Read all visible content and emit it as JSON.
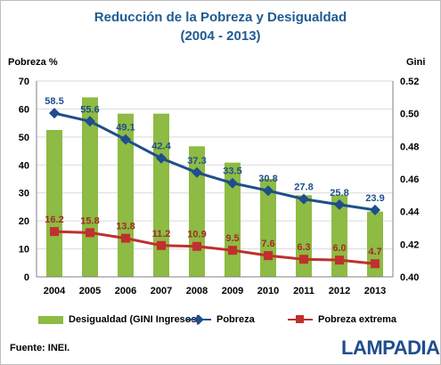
{
  "header": {
    "title_line1": "Reducción de la Pobreza y Desigualdad",
    "title_line2": "(2004 - 2013)"
  },
  "axes": {
    "left_title": "Pobreza %",
    "right_title": "Gini"
  },
  "legend": {
    "gini": "Desigualdad (GINI Ingresos)",
    "pobreza": "Pobreza",
    "extrema": "Pobreza extrema"
  },
  "footer": {
    "source": "Fuente: INEI.",
    "brand": "LAMPADIA"
  },
  "colors": {
    "bars": "#8dbb43",
    "pobreza": "#1f4e8c",
    "extrema": "#c0302e",
    "title": "#1f5b93",
    "pobreza_label": "#1f4e8c",
    "extrema_label": "#a32a2a"
  },
  "chart_data": {
    "type": "bar+line",
    "title": "Reducción de la Pobreza y Desigualdad (2004 - 2013)",
    "categories": [
      "2004",
      "2005",
      "2006",
      "2007",
      "2008",
      "2009",
      "2010",
      "2011",
      "2012",
      "2013"
    ],
    "left_axis": {
      "label": "Pobreza %",
      "range": [
        0,
        70
      ],
      "ticks": [
        0,
        10,
        20,
        30,
        40,
        50,
        60,
        70
      ]
    },
    "right_axis": {
      "label": "Gini",
      "range": [
        0.4,
        0.52
      ],
      "ticks": [
        "0.40",
        "0.42",
        "0.44",
        "0.46",
        "0.48",
        "0.50",
        "0.52"
      ]
    },
    "series": [
      {
        "name": "Desigualdad (GINI Ingresos)",
        "type": "bar",
        "axis": "right",
        "values": [
          0.49,
          0.51,
          0.5,
          0.5,
          0.48,
          0.47,
          0.46,
          0.45,
          0.45,
          0.44
        ]
      },
      {
        "name": "Pobreza",
        "type": "line",
        "axis": "left",
        "marker": "diamond",
        "values": [
          58.5,
          55.6,
          49.1,
          42.4,
          37.3,
          33.5,
          30.8,
          27.8,
          25.8,
          23.9
        ],
        "labels": [
          "58.5",
          "55.6",
          "49.1",
          "42.4",
          "37.3",
          "33.5",
          "30.8",
          "27.8",
          "25.8",
          "23.9"
        ]
      },
      {
        "name": "Pobreza extrema",
        "type": "line",
        "axis": "left",
        "marker": "square",
        "values": [
          16.2,
          15.8,
          13.8,
          11.2,
          10.9,
          9.5,
          7.6,
          6.3,
          6.0,
          4.7
        ],
        "labels": [
          "16.2",
          "15.8",
          "13.8",
          "11.2",
          "10.9",
          "9.5",
          "7.6",
          "6.3",
          "6.0",
          "4.7"
        ]
      }
    ],
    "grid": true,
    "legend_position": "bottom"
  }
}
